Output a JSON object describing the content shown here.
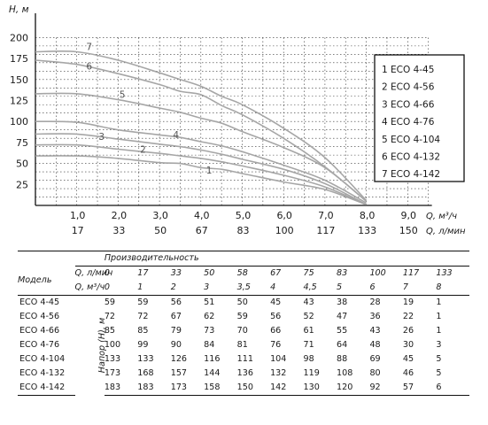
{
  "chart_data": {
    "type": "line",
    "ylabel": "H, м",
    "x_units": [
      "Q, м³/ч",
      "Q, л/мин"
    ],
    "y_ticks": [
      25,
      50,
      75,
      100,
      125,
      150,
      175,
      200
    ],
    "x_ticks": [
      {
        "m3h": "1,0",
        "lmin": "17"
      },
      {
        "m3h": "2,0",
        "lmin": "33"
      },
      {
        "m3h": "3,0",
        "lmin": "50"
      },
      {
        "m3h": "4,0",
        "lmin": "67"
      },
      {
        "m3h": "5,0",
        "lmin": "83"
      },
      {
        "m3h": "6,0",
        "lmin": "100"
      },
      {
        "m3h": "7,0",
        "lmin": "117"
      },
      {
        "m3h": "8,0",
        "lmin": "133"
      },
      {
        "m3h": "9,0",
        "lmin": "150"
      }
    ],
    "xlim": [
      0,
      9.5
    ],
    "ylim": [
      0,
      210
    ],
    "grid": true,
    "legend_position": "right",
    "series": [
      {
        "name": "ECO 4-45",
        "label": "1",
        "x": [
          0,
          1,
          2,
          3,
          3.5,
          4,
          4.5,
          5,
          6,
          7,
          8
        ],
        "y": [
          59,
          59,
          56,
          51,
          50,
          45,
          43,
          38,
          28,
          19,
          1
        ]
      },
      {
        "name": "ECO 4-56",
        "label": "2",
        "x": [
          0,
          1,
          2,
          3,
          3.5,
          4,
          4.5,
          5,
          6,
          7,
          8
        ],
        "y": [
          72,
          72,
          67,
          62,
          59,
          56,
          52,
          47,
          36,
          22,
          1
        ]
      },
      {
        "name": "ECO 4-66",
        "label": "3",
        "x": [
          0,
          1,
          2,
          3,
          3.5,
          4,
          4.5,
          5,
          6,
          7,
          8
        ],
        "y": [
          85,
          85,
          79,
          73,
          70,
          66,
          61,
          55,
          43,
          26,
          1
        ]
      },
      {
        "name": "ECO 4-76",
        "label": "4",
        "x": [
          0,
          1,
          2,
          3,
          3.5,
          4,
          4.5,
          5,
          6,
          7,
          8
        ],
        "y": [
          100,
          99,
          90,
          84,
          81,
          76,
          71,
          64,
          48,
          30,
          3
        ]
      },
      {
        "name": "ECO 4-104",
        "label": "5",
        "x": [
          0,
          1,
          2,
          3,
          3.5,
          4,
          4.5,
          5,
          6,
          7,
          8
        ],
        "y": [
          133,
          133,
          126,
          116,
          111,
          104,
          98,
          88,
          69,
          45,
          5
        ]
      },
      {
        "name": "ECO 4-132",
        "label": "6",
        "x": [
          0,
          1,
          2,
          3,
          3.5,
          4,
          4.5,
          5,
          6,
          7,
          8
        ],
        "y": [
          173,
          168,
          157,
          144,
          136,
          132,
          119,
          108,
          80,
          46,
          5
        ]
      },
      {
        "name": "ECO 4-142",
        "label": "7",
        "x": [
          0,
          1,
          2,
          3,
          3.5,
          4,
          4.5,
          5,
          6,
          7,
          8
        ],
        "y": [
          183,
          183,
          173,
          158,
          150,
          142,
          130,
          120,
          92,
          57,
          6
        ]
      }
    ],
    "curve_label_positions_data": [
      {
        "label": "1",
        "x": 4.2,
        "y": 38
      },
      {
        "label": "2",
        "x": 2.6,
        "y": 63
      },
      {
        "label": "3",
        "x": 1.6,
        "y": 78
      },
      {
        "label": "4",
        "x": 3.4,
        "y": 80
      },
      {
        "label": "5",
        "x": 2.1,
        "y": 128
      },
      {
        "label": "6",
        "x": 1.3,
        "y": 162
      },
      {
        "label": "7",
        "x": 1.3,
        "y": 185
      }
    ]
  },
  "table": {
    "model_header": "Модель",
    "productivity_header": "Производительность",
    "lmin_label": "Q, л/мин",
    "m3h_label": "Q, м³/ч",
    "head_label": "Напор (H), м",
    "lmin_values": [
      "0",
      "17",
      "33",
      "50",
      "58",
      "67",
      "75",
      "83",
      "100",
      "117",
      "133"
    ],
    "m3h_values": [
      "0",
      "1",
      "2",
      "3",
      "3,5",
      "4",
      "4,5",
      "5",
      "6",
      "7",
      "8"
    ],
    "rows": [
      {
        "model": "ECO 4-45",
        "values": [
          "59",
          "59",
          "56",
          "51",
          "50",
          "45",
          "43",
          "38",
          "28",
          "19",
          "1"
        ]
      },
      {
        "model": "ECO 4-56",
        "values": [
          "72",
          "72",
          "67",
          "62",
          "59",
          "56",
          "52",
          "47",
          "36",
          "22",
          "1"
        ]
      },
      {
        "model": "ECO 4-66",
        "values": [
          "85",
          "85",
          "79",
          "73",
          "70",
          "66",
          "61",
          "55",
          "43",
          "26",
          "1"
        ]
      },
      {
        "model": "ECO 4-76",
        "values": [
          "100",
          "99",
          "90",
          "84",
          "81",
          "76",
          "71",
          "64",
          "48",
          "30",
          "3"
        ]
      },
      {
        "model": "ECO 4-104",
        "values": [
          "133",
          "133",
          "126",
          "116",
          "111",
          "104",
          "98",
          "88",
          "69",
          "45",
          "5"
        ]
      },
      {
        "model": "ECO 4-132",
        "values": [
          "173",
          "168",
          "157",
          "144",
          "136",
          "132",
          "119",
          "108",
          "80",
          "46",
          "5"
        ]
      },
      {
        "model": "ECO 4-142",
        "values": [
          "183",
          "183",
          "173",
          "158",
          "150",
          "142",
          "130",
          "120",
          "92",
          "57",
          "6"
        ]
      }
    ]
  },
  "colors": {
    "curve": "#a6a6a6",
    "axis": "#111111",
    "text": "#1a1a1a"
  }
}
